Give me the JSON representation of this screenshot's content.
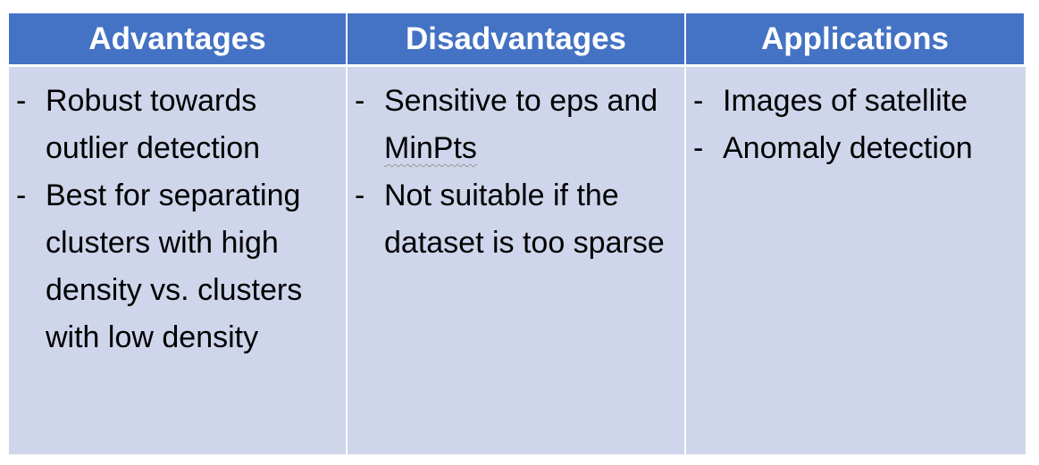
{
  "headers": [
    "Advantages",
    "Disadvantages",
    "Applications"
  ],
  "columns": [
    {
      "items": [
        "Robust towards outlier detection",
        "Best for separating clusters with high density vs. clusters with low density"
      ]
    },
    {
      "items": [
        "Sensitive to eps and MinPts",
        "Not suitable if the dataset is too sparse"
      ]
    },
    {
      "items": [
        "Images of satellite",
        "Anomaly detection"
      ]
    }
  ],
  "bullet_char": "-",
  "colors": {
    "header_bg": "#4472c4",
    "header_text": "#ffffff",
    "body_bg": "#cfd5ea",
    "grid_line": "#ffffff"
  }
}
